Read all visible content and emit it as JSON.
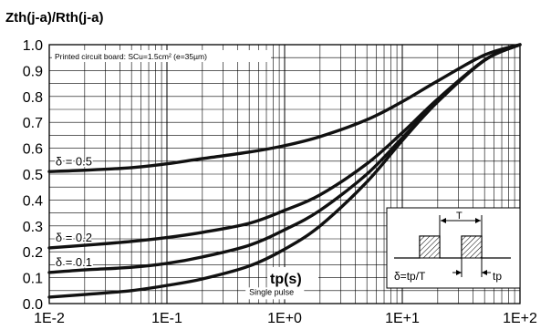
{
  "chart_data": {
    "type": "line",
    "title": "Zth(j-a)/Rth(j-a)",
    "subtitle": "Printed circuit board: SCu=1.5cm² (e=35µm)",
    "xlabel": "tp(s)",
    "ylabel": "",
    "x_scale": "log",
    "xlim": [
      0.01,
      100
    ],
    "ylim": [
      0.0,
      1.0
    ],
    "grid": true,
    "x_ticks": [
      "1E-2",
      "1E-1",
      "1E+0",
      "1E+1",
      "1E+2"
    ],
    "y_ticks": [
      "0.0",
      "0.1",
      "0.2",
      "0.3",
      "0.4",
      "0.5",
      "0.6",
      "0.7",
      "0.8",
      "0.9",
      "1.0"
    ],
    "series": [
      {
        "name": "δ = 0.5",
        "x": [
          0.01,
          0.02,
          0.05,
          0.1,
          0.2,
          0.5,
          1,
          2,
          5,
          10,
          20,
          50,
          100
        ],
        "y": [
          0.51,
          0.515,
          0.525,
          0.54,
          0.56,
          0.585,
          0.61,
          0.645,
          0.71,
          0.78,
          0.86,
          0.96,
          1.0
        ]
      },
      {
        "name": "δ = 0.2",
        "x": [
          0.01,
          0.02,
          0.05,
          0.1,
          0.2,
          0.5,
          1,
          2,
          5,
          10,
          20,
          50,
          100
        ],
        "y": [
          0.215,
          0.225,
          0.24,
          0.255,
          0.275,
          0.31,
          0.36,
          0.42,
          0.54,
          0.66,
          0.79,
          0.94,
          1.0
        ]
      },
      {
        "name": "δ = 0.1",
        "x": [
          0.01,
          0.02,
          0.05,
          0.1,
          0.2,
          0.5,
          1,
          2,
          5,
          10,
          20,
          50,
          100
        ],
        "y": [
          0.12,
          0.13,
          0.14,
          0.155,
          0.18,
          0.225,
          0.285,
          0.36,
          0.5,
          0.64,
          0.78,
          0.94,
          1.0
        ]
      },
      {
        "name": "Single pulse",
        "x": [
          0.01,
          0.02,
          0.05,
          0.1,
          0.2,
          0.5,
          1,
          2,
          5,
          10,
          20,
          50,
          100
        ],
        "y": [
          0.025,
          0.035,
          0.05,
          0.07,
          0.095,
          0.145,
          0.21,
          0.3,
          0.47,
          0.63,
          0.78,
          0.94,
          1.0
        ]
      }
    ],
    "inset": {
      "period_label": "T",
      "duty_formula": "δ=tp/T",
      "pulse_label": "tp"
    }
  }
}
